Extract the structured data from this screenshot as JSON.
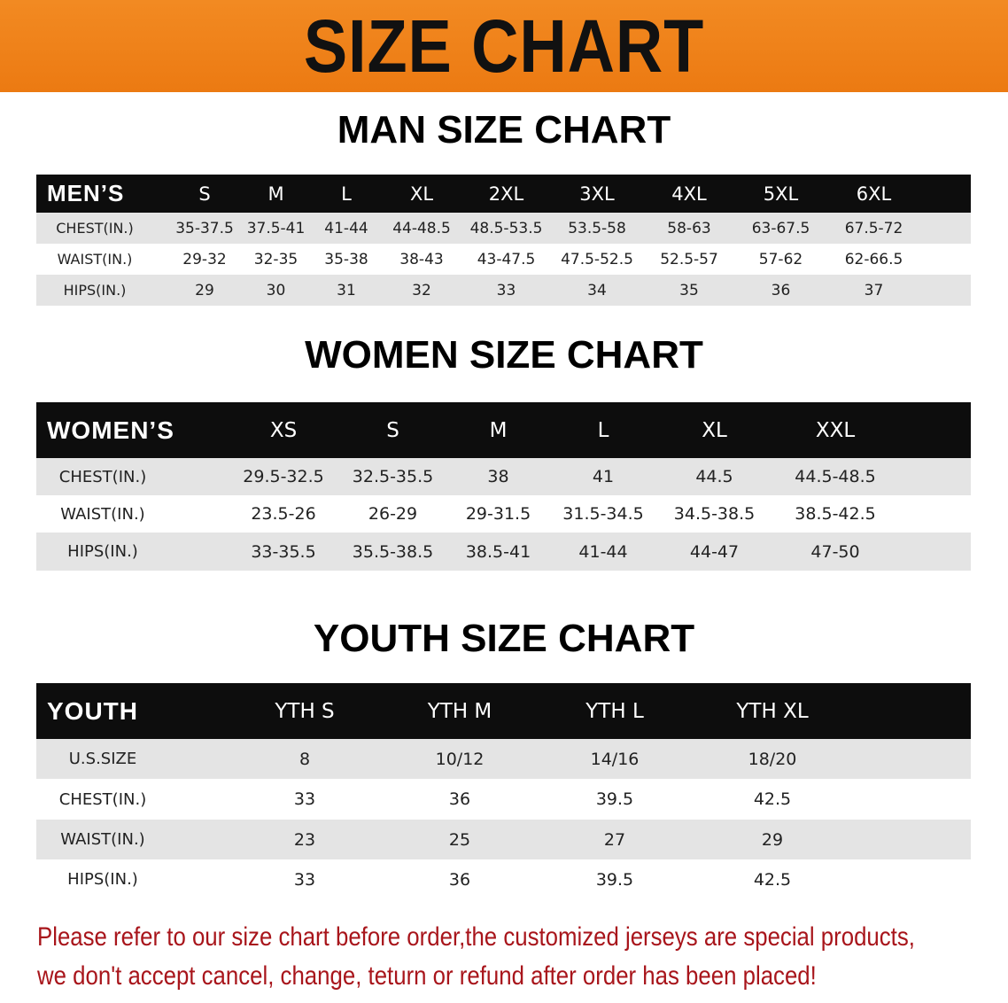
{
  "banner_title": "SIZE CHART",
  "tables": [
    {
      "title": "MAN SIZE CHART",
      "header_label": "MEN’S",
      "sizes": [
        "S",
        "M",
        "L",
        "XL",
        "2XL",
        "3XL",
        "4XL",
        "5XL",
        "6XL"
      ],
      "rows": [
        {
          "label": "CHEST(IN.)",
          "values": [
            "35-37.5",
            "37.5-41",
            "41-44",
            "44-48.5",
            "48.5-53.5",
            "53.5-58",
            "58-63",
            "63-67.5",
            "67.5-72"
          ]
        },
        {
          "label": "WAIST(IN.)",
          "values": [
            "29-32",
            "32-35",
            "35-38",
            "38-43",
            "43-47.5",
            "47.5-52.5",
            "52.5-57",
            "57-62",
            "62-66.5"
          ]
        },
        {
          "label": "HIPS(IN.)",
          "values": [
            "29",
            "30",
            "31",
            "32",
            "33",
            "34",
            "35",
            "36",
            "37"
          ]
        }
      ]
    },
    {
      "title": "WOMEN SIZE CHART",
      "header_label": "WOMEN’S",
      "sizes": [
        "XS",
        "S",
        "M",
        "L",
        "XL",
        "XXL"
      ],
      "rows": [
        {
          "label": "CHEST(IN.)",
          "values": [
            "29.5-32.5",
            "32.5-35.5",
            "38",
            "41",
            "44.5",
            "44.5-48.5"
          ]
        },
        {
          "label": "WAIST(IN.)",
          "values": [
            "23.5-26",
            "26-29",
            "29-31.5",
            "31.5-34.5",
            "34.5-38.5",
            "38.5-42.5"
          ]
        },
        {
          "label": "HIPS(IN.)",
          "values": [
            "33-35.5",
            "35.5-38.5",
            "38.5-41",
            "41-44",
            "44-47",
            "47-50"
          ]
        }
      ]
    },
    {
      "title": "YOUTH SIZE CHART",
      "header_label": "YOUTH",
      "sizes": [
        "YTH S",
        "YTH M",
        "YTH L",
        "YTH XL"
      ],
      "rows": [
        {
          "label": "U.S.SIZE",
          "values": [
            "8",
            "10/12",
            "14/16",
            "18/20"
          ]
        },
        {
          "label": "CHEST(IN.)",
          "values": [
            "33",
            "36",
            "39.5",
            "42.5"
          ]
        },
        {
          "label": "WAIST(IN.)",
          "values": [
            "23",
            "25",
            "27",
            "29"
          ]
        },
        {
          "label": "HIPS(IN.)",
          "values": [
            "33",
            "36",
            "39.5",
            "42.5"
          ]
        }
      ]
    }
  ],
  "notice": {
    "line1": "Please refer to our size chart before order,the customized jerseys are special products,",
    "line2": "we don't accept cancel, change, teturn or refund after order has been placed!"
  },
  "colors": {
    "banner": "#ec7a12",
    "header_row": "#0d0d0d",
    "stripe": "#e4e4e4",
    "notice": "#a8151b"
  }
}
